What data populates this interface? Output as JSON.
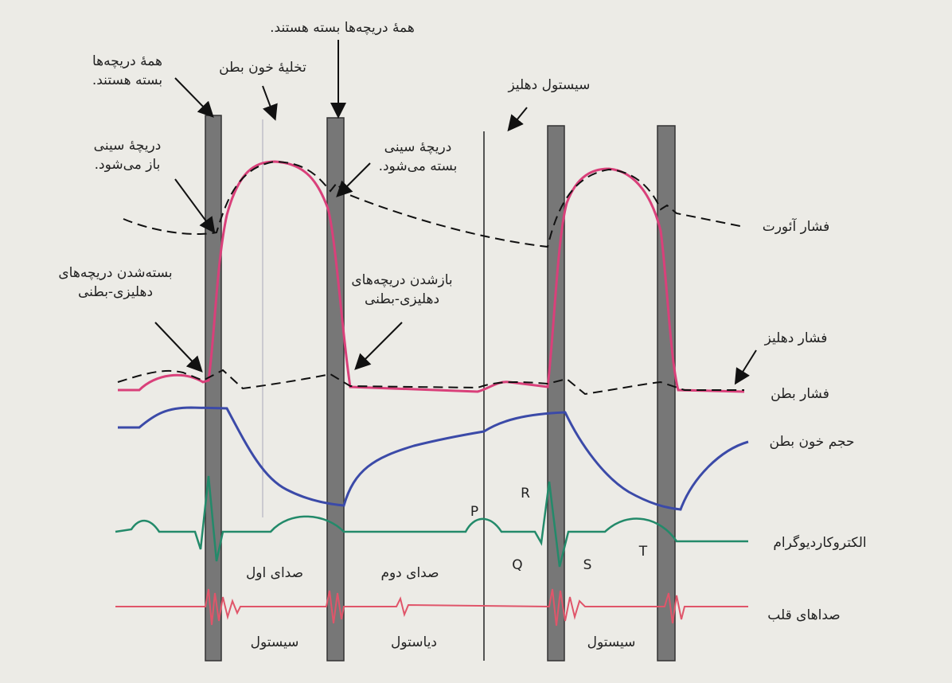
{
  "annotations": [
    {
      "lines": [
        "همهٔ دریچه‌ها بسته هستند."
      ]
    },
    {
      "lines": [
        "تخلیهٔ خون بطن"
      ]
    },
    {
      "lines": [
        "همهٔ دریچه‌ها",
        "بسته هستند."
      ]
    },
    {
      "lines": [
        "سیستول دهلیز"
      ]
    },
    {
      "lines": [
        "دریچهٔ سینی",
        "باز می‌شود."
      ]
    },
    {
      "lines": [
        "دریچهٔ سینی",
        "بسته می‌شود."
      ]
    },
    {
      "lines": [
        "بسته‌شدن دریچه‌های",
        "دهلیزی-بطنی"
      ]
    },
    {
      "lines": [
        "بازشدن دریچه‌های",
        "دهلیزی-بطنی"
      ]
    }
  ],
  "curve_labels": [
    "فشار آئورت",
    "فشار دهلیز",
    "فشار بطن",
    "حجم خون بطن",
    "الکتروکاردیوگرام",
    "صداهای قلب"
  ],
  "ecg_waves": [
    "P",
    "Q",
    "R",
    "S",
    "T"
  ],
  "sound_labels": [
    "صدای اول",
    "صدای دوم"
  ],
  "phase_labels": [
    "سیستول",
    "دیاستول",
    "سیستول"
  ]
}
